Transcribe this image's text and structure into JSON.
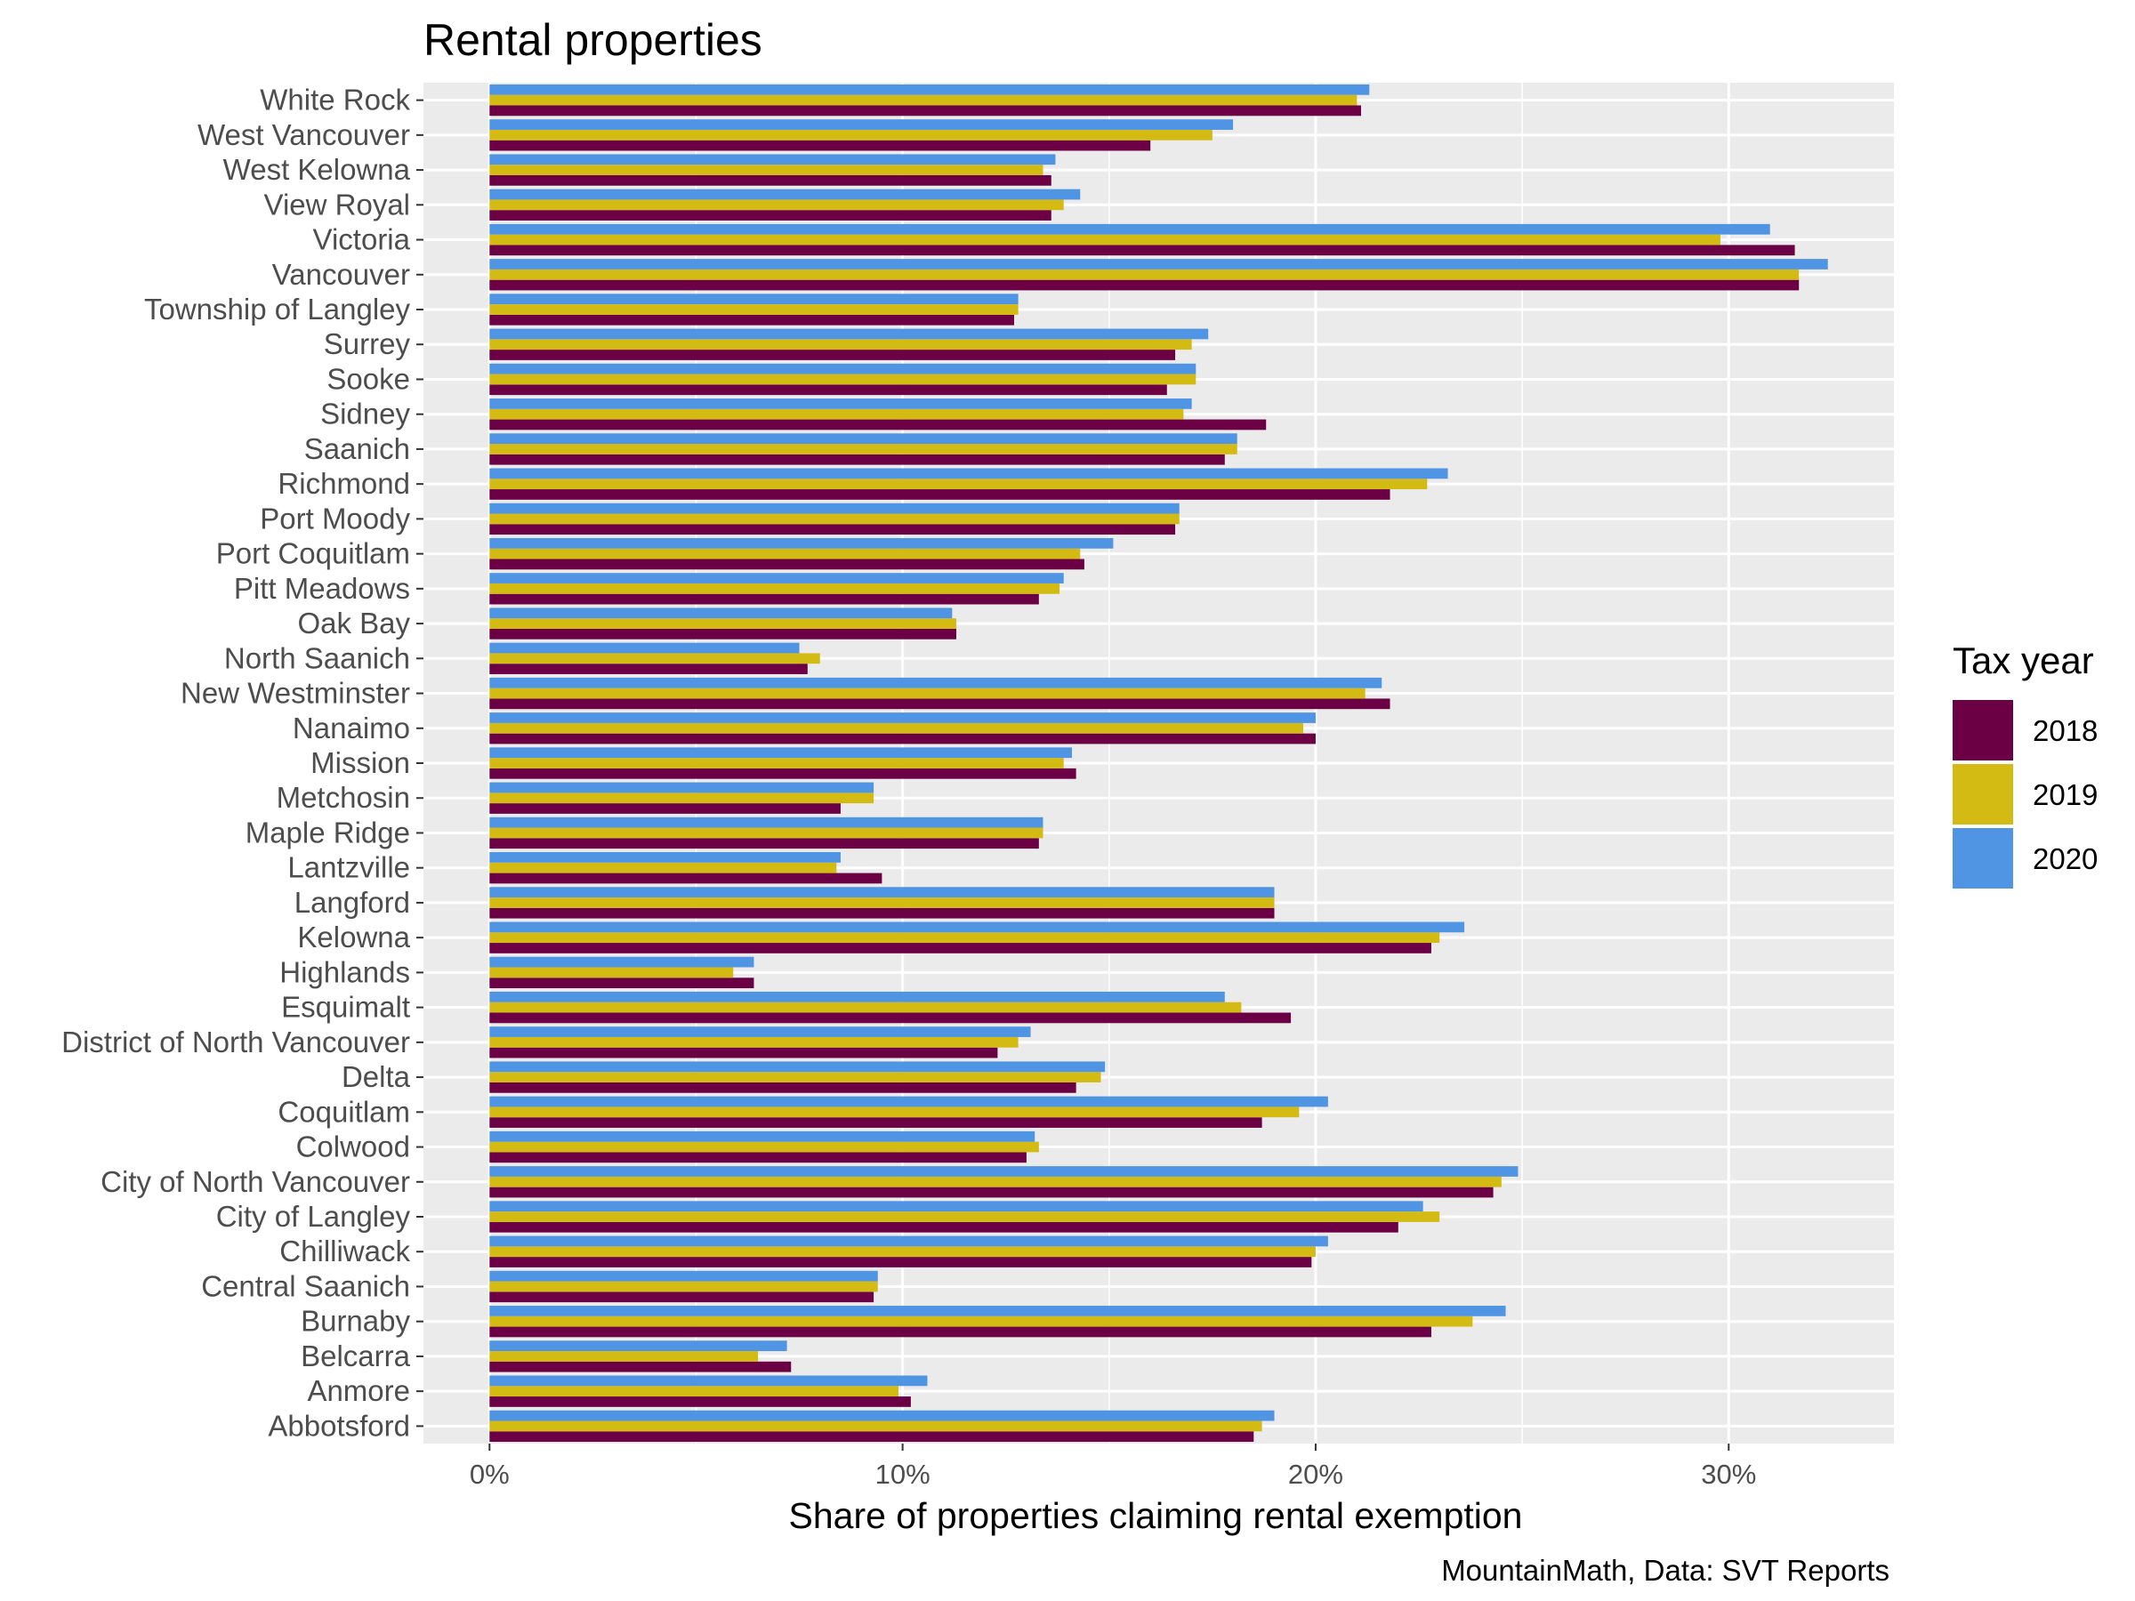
{
  "chart_data": {
    "type": "bar",
    "orientation": "horizontal",
    "title": "Rental properties",
    "xlabel": "Share of properties claiming rental exemption",
    "ylabel": "",
    "caption": "MountainMath, Data: SVT Reports",
    "xlim": [
      -0.016,
      0.34
    ],
    "x_ticks": [
      0,
      0.1,
      0.2,
      0.3
    ],
    "x_tick_labels": [
      "0%",
      "10%",
      "20%",
      "30%"
    ],
    "grid": true,
    "legend": {
      "title": "Tax year",
      "position": "right"
    },
    "categories": [
      "White Rock",
      "West Vancouver",
      "West Kelowna",
      "View Royal",
      "Victoria",
      "Vancouver",
      "Township of Langley",
      "Surrey",
      "Sooke",
      "Sidney",
      "Saanich",
      "Richmond",
      "Port Moody",
      "Port Coquitlam",
      "Pitt Meadows",
      "Oak Bay",
      "North Saanich",
      "New Westminster",
      "Nanaimo",
      "Mission",
      "Metchosin",
      "Maple Ridge",
      "Lantzville",
      "Langford",
      "Kelowna",
      "Highlands",
      "Esquimalt",
      "District of North Vancouver",
      "Delta",
      "Coquitlam",
      "Colwood",
      "City of North Vancouver",
      "City of Langley",
      "Chilliwack",
      "Central Saanich",
      "Burnaby",
      "Belcarra",
      "Anmore",
      "Abbotsford"
    ],
    "series": [
      {
        "name": "2018",
        "color": "#6b0045",
        "values": [
          0.211,
          0.16,
          0.136,
          0.136,
          0.316,
          0.317,
          0.127,
          0.166,
          0.164,
          0.188,
          0.178,
          0.218,
          0.166,
          0.144,
          0.133,
          0.113,
          0.077,
          0.218,
          0.2,
          0.142,
          0.085,
          0.133,
          0.095,
          0.19,
          0.228,
          0.064,
          0.194,
          0.123,
          0.142,
          0.187,
          0.13,
          0.243,
          0.22,
          0.199,
          0.093,
          0.228,
          0.073,
          0.102,
          0.185
        ]
      },
      {
        "name": "2019",
        "color": "#d4bb14",
        "values": [
          0.21,
          0.175,
          0.134,
          0.139,
          0.298,
          0.317,
          0.128,
          0.17,
          0.171,
          0.168,
          0.181,
          0.227,
          0.167,
          0.143,
          0.138,
          0.113,
          0.08,
          0.212,
          0.197,
          0.139,
          0.093,
          0.134,
          0.084,
          0.19,
          0.23,
          0.059,
          0.182,
          0.128,
          0.148,
          0.196,
          0.133,
          0.245,
          0.23,
          0.2,
          0.094,
          0.238,
          0.065,
          0.099,
          0.187
        ]
      },
      {
        "name": "2020",
        "color": "#5095e4",
        "values": [
          0.213,
          0.18,
          0.137,
          0.143,
          0.31,
          0.324,
          0.128,
          0.174,
          0.171,
          0.17,
          0.181,
          0.232,
          0.167,
          0.151,
          0.139,
          0.112,
          0.075,
          0.216,
          0.2,
          0.141,
          0.093,
          0.134,
          0.085,
          0.19,
          0.236,
          0.064,
          0.178,
          0.131,
          0.149,
          0.203,
          0.132,
          0.249,
          0.226,
          0.203,
          0.094,
          0.246,
          0.072,
          0.106,
          0.19
        ]
      }
    ]
  }
}
